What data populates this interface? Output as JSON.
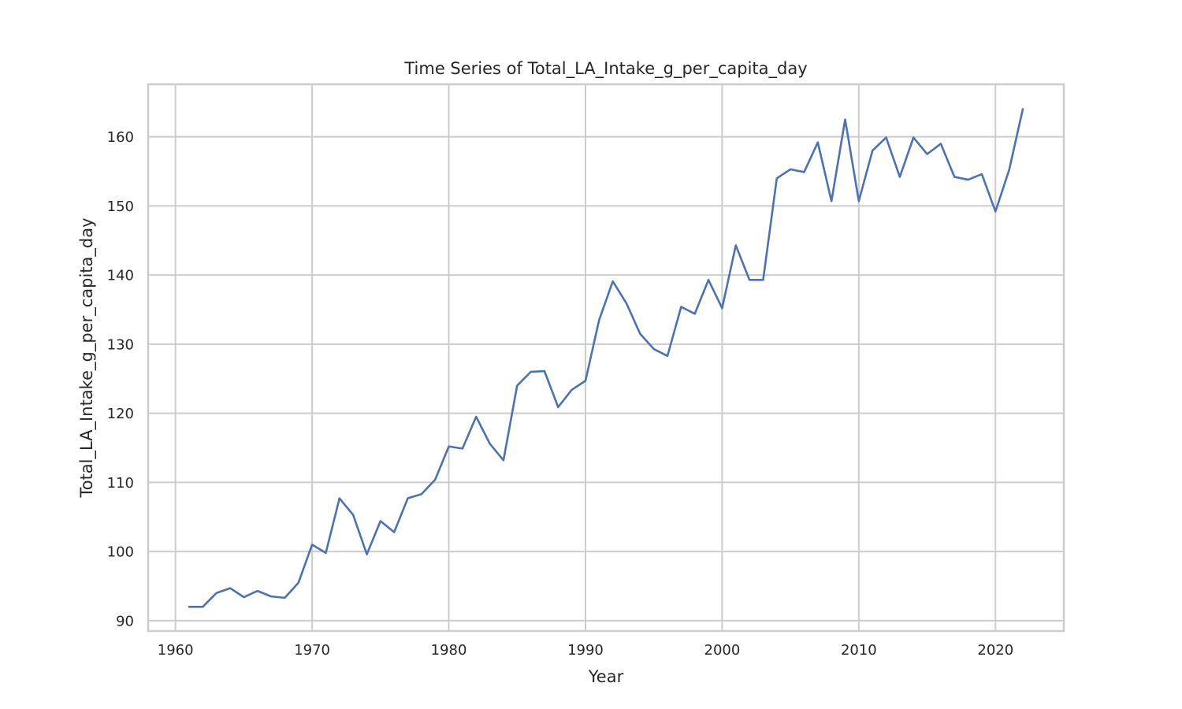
{
  "chart_data": {
    "type": "line",
    "title": "Time Series of Total_LA_Intake_g_per_capita_day",
    "xlabel": "Year",
    "ylabel": "Total_LA_Intake_g_per_capita_day",
    "xlim": [
      1958,
      2025
    ],
    "ylim": [
      88.5,
      167.6
    ],
    "xticks": [
      1960,
      1970,
      1980,
      1990,
      2000,
      2010,
      2020
    ],
    "yticks": [
      90,
      100,
      110,
      120,
      130,
      140,
      150,
      160
    ],
    "grid": true,
    "colors": {
      "series": "#4c72b0",
      "grid": "#cccccc",
      "frame": "#cccccc",
      "text": "#262626"
    },
    "series": [
      {
        "x": [
          1961,
          1962,
          1963,
          1964,
          1965,
          1966,
          1967,
          1968,
          1969,
          1970,
          1971,
          1972,
          1973,
          1974,
          1975,
          1976,
          1977,
          1978,
          1979,
          1980,
          1981,
          1982,
          1983,
          1984,
          1985,
          1986,
          1987,
          1988,
          1989,
          1990,
          1991,
          1992,
          1993,
          1994,
          1995,
          1996,
          1997,
          1998,
          1999,
          2000,
          2001,
          2002,
          2003,
          2004,
          2005,
          2006,
          2007,
          2008,
          2009,
          2010,
          2011,
          2012,
          2013,
          2014,
          2015,
          2016,
          2017,
          2018,
          2019,
          2020,
          2021,
          2022
        ],
        "values": [
          92.0,
          92.0,
          94.0,
          94.7,
          93.4,
          94.3,
          93.5,
          93.3,
          95.5,
          101.0,
          99.8,
          107.7,
          105.3,
          99.6,
          104.4,
          102.8,
          107.7,
          108.3,
          110.4,
          115.2,
          114.9,
          119.5,
          115.6,
          113.2,
          124.0,
          126.0,
          126.1,
          120.9,
          123.4,
          124.7,
          133.5,
          139.1,
          135.9,
          131.5,
          129.3,
          128.3,
          135.4,
          134.4,
          139.3,
          135.2,
          144.3,
          139.3,
          139.3,
          154.0,
          155.3,
          154.9,
          159.2,
          150.7,
          162.5,
          150.7,
          158.0,
          159.9,
          154.2,
          159.9,
          157.5,
          159.0,
          154.2,
          153.8,
          154.6,
          149.2,
          155.2,
          164.0
        ]
      }
    ]
  }
}
